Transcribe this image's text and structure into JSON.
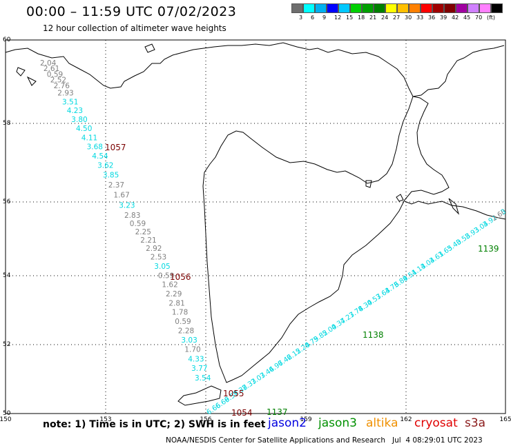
{
  "title": "00:00 – 11:59 UTC 07/02/2023",
  "subtitle": "12 hour collection of altimeter wave heights",
  "colors": {
    "gray": "#808080",
    "cyan": "#00d8e0",
    "darkred": "#7a0000",
    "green": "#008000",
    "blue": "#0000e0",
    "jason3": "#009000",
    "altika": "#f09000",
    "cryosat": "#e00000",
    "s3a": "#8a1a1a"
  },
  "color_scale": {
    "colors": [
      "#6e6e6e",
      "#00ffff",
      "#00b0f0",
      "#0000ff",
      "#00c8ff",
      "#00d000",
      "#00a000",
      "#008000",
      "#ffff00",
      "#ffc000",
      "#ff8000",
      "#ff0000",
      "#a00000",
      "#800000",
      "#a000a0",
      "#d080ff",
      "#ff80ff",
      "#000000"
    ],
    "labels": [
      "3",
      "6",
      "9",
      "12",
      "15",
      "18",
      "21",
      "24",
      "27",
      "30",
      "33",
      "36",
      "39",
      "42",
      "45",
      "70",
      "(ft)"
    ]
  },
  "axes": {
    "lon_ticks": [
      "150",
      "153",
      "156",
      "159",
      "162",
      "165"
    ],
    "lat_ticks": [
      "60",
      "58",
      "56",
      "54",
      "52",
      "50"
    ]
  },
  "tracks": {
    "west_labels": [
      "2.04",
      "2.61",
      "0.59",
      "2.52",
      "2.76",
      "2.93",
      "3.51",
      "4.23",
      "3.80",
      "4.50",
      "4.11",
      "3.68",
      "4.54",
      "3.62",
      "3.85",
      "2.37",
      "1.67",
      "3.23",
      "2.83",
      "0.59",
      "2.25",
      "2.21",
      "2.92",
      "2.53",
      "3.05",
      "0.59",
      "1.62",
      "2.29",
      "2.81",
      "1.78",
      "0.59",
      "2.28",
      "3.03",
      "1.70",
      "4.33",
      "3.77",
      "3.54"
    ],
    "west_colors": [
      "g",
      "g",
      "g",
      "g",
      "g",
      "g",
      "c",
      "c",
      "c",
      "c",
      "c",
      "c",
      "c",
      "c",
      "c",
      "g",
      "g",
      "c",
      "g",
      "g",
      "g",
      "g",
      "g",
      "g",
      "c",
      "g",
      "g",
      "g",
      "g",
      "g",
      "g",
      "g",
      "c",
      "g",
      "c",
      "c",
      "c"
    ],
    "east_labels": [
      "6.66",
      "6.69",
      "6.59",
      "7.38",
      "7.33",
      "7.03",
      "7.44",
      "6.97",
      "6.42",
      "6.12",
      "5.20",
      "4.79",
      "5.82",
      "5.00",
      "4.37",
      "4.27",
      "3.78",
      "4.30",
      "4.57",
      "3.63",
      "4.76",
      "3.89",
      "4.51",
      "4.13",
      "4.04",
      "3.61",
      "3.65",
      "3.40",
      "3.58",
      "3.93",
      "3.04",
      "3.91",
      "2.60",
      "3"
    ]
  },
  "track_ids": {
    "west": [
      "1057",
      "1056",
      "1055",
      "1054"
    ],
    "east_green": [
      "1137",
      "1138",
      "1139"
    ]
  },
  "legend": {
    "note": "note: 1) Time is in UTC; 2) SWH is in feet",
    "jason2": "jason2",
    "jason3": "jason3",
    "altika": "altika",
    "cryosat": "cryosat",
    "s3a": "s3a"
  },
  "footer": "NOAA/NESDIS Center for Satellite Applications and Research   Jul  4 08:29:01 UTC 2023"
}
